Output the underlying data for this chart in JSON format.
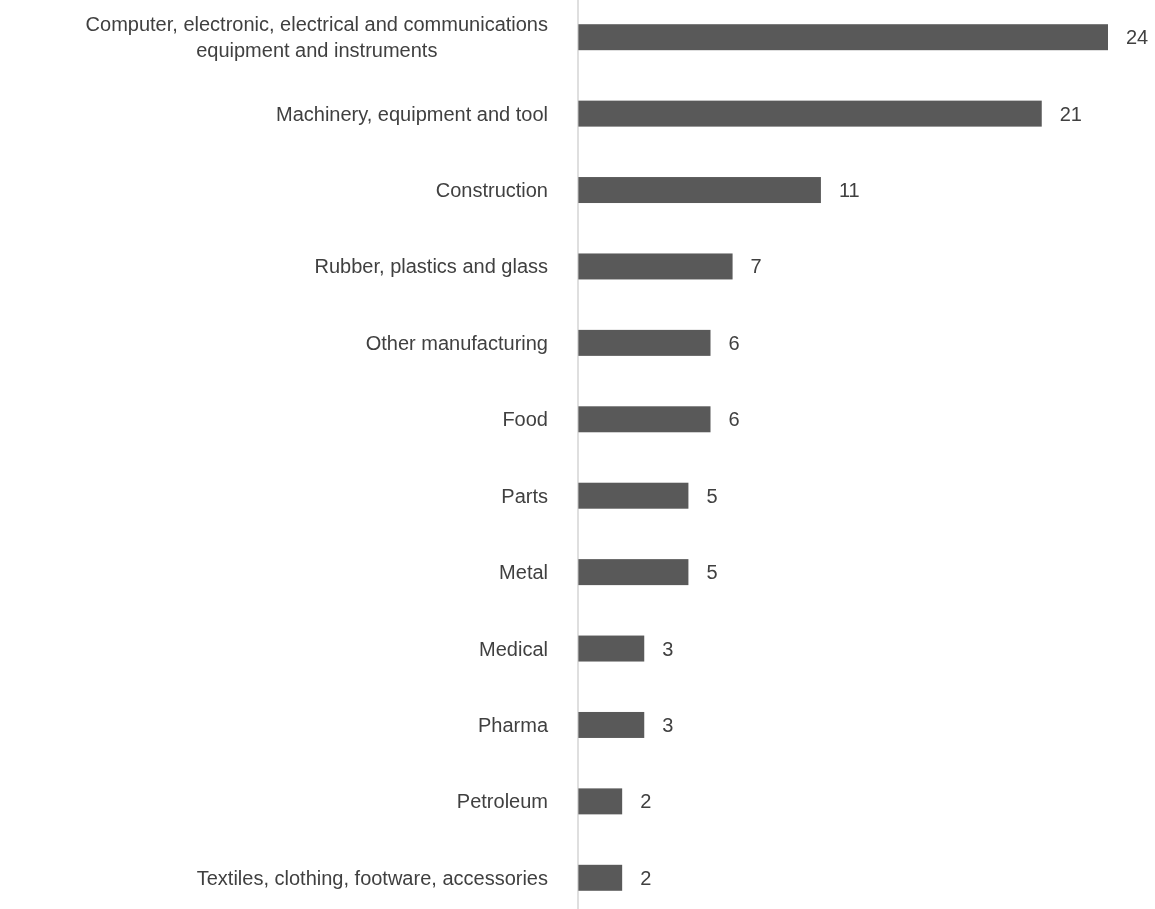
{
  "chart_data": {
    "type": "bar",
    "orientation": "horizontal",
    "categories": [
      "Computer, electronic, electrical and communications equipment and instruments",
      "Machinery, equipment and tool",
      "Construction",
      "Rubber, plastics and glass",
      "Other manufacturing",
      "Food",
      "Parts",
      "Metal",
      "Medical",
      "Pharma",
      "Petroleum",
      "Textiles, clothing, footware, accessories"
    ],
    "values": [
      24,
      21,
      11,
      7,
      6,
      6,
      5,
      5,
      3,
      3,
      2,
      2
    ],
    "color": "#595959",
    "xlim": [
      0,
      24
    ],
    "data_labels": true
  }
}
